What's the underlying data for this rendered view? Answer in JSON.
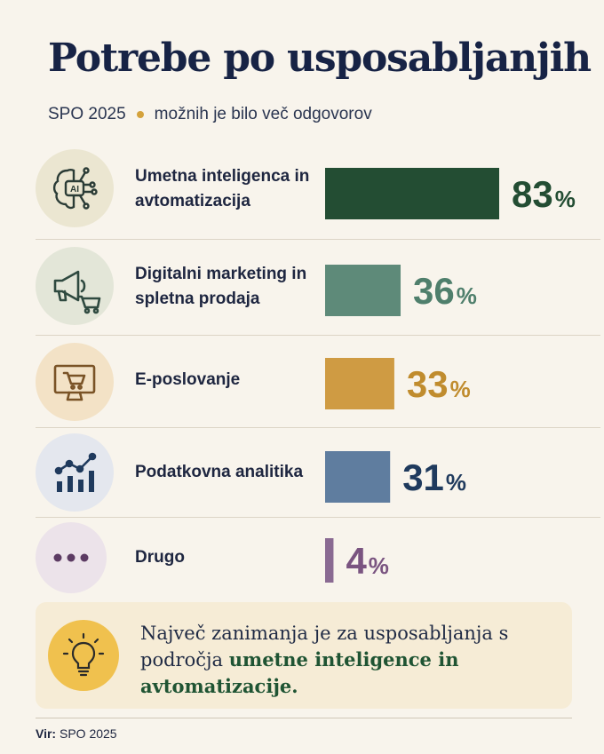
{
  "header": {
    "title": "Potrebe po usposabljanjih",
    "subtitle_left": "SPO 2025",
    "subtitle_right": "možnih je bilo več odgovorov"
  },
  "chart_data": {
    "type": "bar",
    "orientation": "horizontal",
    "categories": [
      "Umetna inteligenca in avtomatizacija",
      "Digitalni marketing in spletna prodaja",
      "E-poslovanje",
      "Podatkovna analitika",
      "Drugo"
    ],
    "values": [
      83,
      36,
      33,
      31,
      4
    ],
    "value_labels": [
      "83",
      "36",
      "33",
      "31",
      "4"
    ],
    "unit": "%",
    "colors": [
      "#234d33",
      "#5e8a79",
      "#cf9b43",
      "#5f7d9f",
      "#8a6a92"
    ],
    "label_colors": [
      "#234d33",
      "#4f7f6c",
      "#c08c2e",
      "#1f3a5d",
      "#7a5480"
    ],
    "icons": [
      "ai-brain-icon",
      "megaphone-cart-icon",
      "monitor-cart-icon",
      "analytics-chart-icon",
      "more-dots-icon"
    ],
    "icon_backgrounds": [
      "#ebe6d1",
      "#e3e6d8",
      "#f3e2c6",
      "#e4e7ee",
      "#ece3ea"
    ],
    "xlim": [
      0,
      100
    ],
    "grid": false
  },
  "labels": {
    "row0": "Umetna inteligenca in avtomatizacija",
    "row1": "Digitalni marketing in spletna prodaja",
    "row2": "E-poslovanje",
    "row3": "Podatkovna analitika",
    "row4": "Drugo"
  },
  "callout": {
    "icon": "lightbulb-icon",
    "text_plain": "Največ zanimanja je za usposabljanja s področja",
    "text_highlight": "umetne inteligence in avtomatizacije."
  },
  "source": {
    "label": "Vir:",
    "value": "SPO 2025"
  }
}
